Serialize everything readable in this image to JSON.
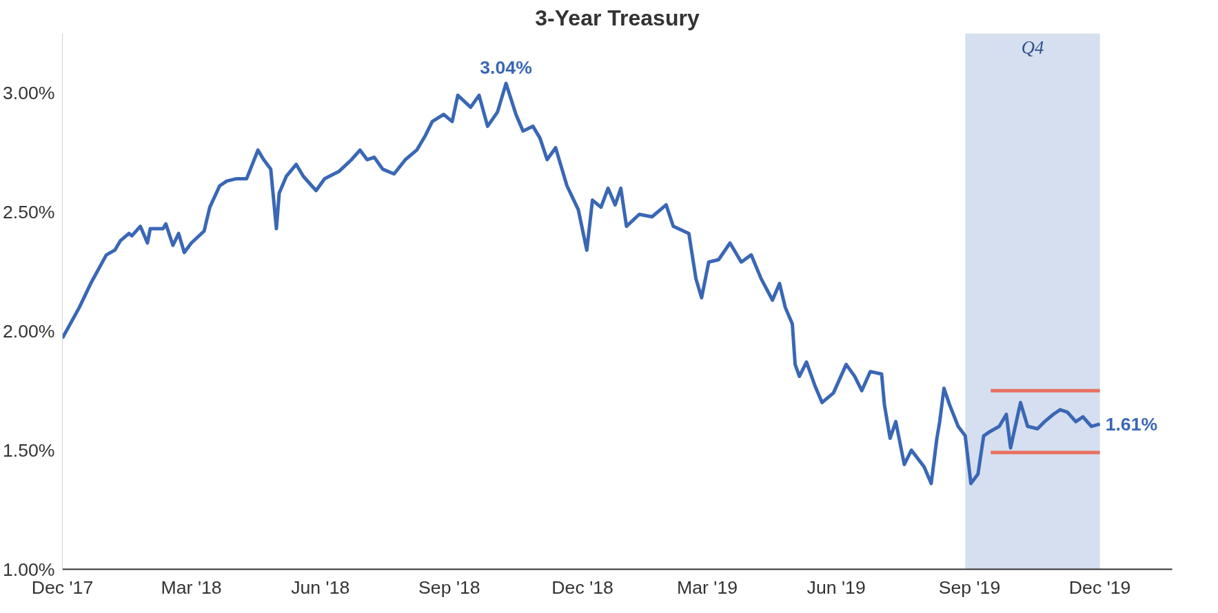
{
  "chart_data": {
    "type": "line",
    "title": "3-Year Treasury",
    "xlim": [
      "2017-12-29",
      "2020-02-20"
    ],
    "xticks": [
      {
        "value": "2017-12-29",
        "label": "Dec '17"
      },
      {
        "value": "2018-03-30",
        "label": "Mar '18"
      },
      {
        "value": "2018-06-29",
        "label": "Jun '18"
      },
      {
        "value": "2018-09-28",
        "label": "Sep '18"
      },
      {
        "value": "2018-12-31",
        "label": "Dec '18"
      },
      {
        "value": "2019-03-29",
        "label": "Mar '19"
      },
      {
        "value": "2019-06-28",
        "label": "Jun '19"
      },
      {
        "value": "2019-09-30",
        "label": "Sep '19"
      },
      {
        "value": "2019-12-31",
        "label": "Dec '19"
      }
    ],
    "ylim": [
      1.0,
      3.25
    ],
    "yticks": [
      {
        "value": 1.0,
        "label": "1.00%"
      },
      {
        "value": 1.5,
        "label": "1.50%"
      },
      {
        "value": 2.0,
        "label": "2.00%"
      },
      {
        "value": 2.5,
        "label": "2.50%"
      },
      {
        "value": 3.0,
        "label": "3.00%"
      }
    ],
    "grid": false,
    "marker": "none",
    "line_style": "solid",
    "bands": [
      {
        "axis": "x",
        "from": "2019-09-27",
        "to": "2019-12-31",
        "label": "Q4",
        "color": "#d5dff0"
      }
    ],
    "annotations": [
      {
        "text": "3.04%",
        "x": "2018-11-07",
        "y": 3.04
      },
      {
        "text": "1.61%",
        "x": "2019-12-31",
        "y": 1.61
      }
    ],
    "series": [
      {
        "color": "#3a67b5",
        "x": [
          "2017-12-29",
          "2018-01-10",
          "2018-01-18",
          "2018-01-29",
          "2018-02-04",
          "2018-02-08",
          "2018-02-14",
          "2018-02-16",
          "2018-02-22",
          "2018-02-27",
          "2018-03-01",
          "2018-03-10",
          "2018-03-12",
          "2018-03-17",
          "2018-03-21",
          "2018-03-25",
          "2018-03-30",
          "2018-04-08",
          "2018-04-12",
          "2018-04-19",
          "2018-04-24",
          "2018-05-01",
          "2018-05-08",
          "2018-05-16",
          "2018-05-20",
          "2018-05-25",
          "2018-05-29",
          "2018-05-31",
          "2018-06-05",
          "2018-06-12",
          "2018-06-17",
          "2018-06-26",
          "2018-07-02",
          "2018-07-12",
          "2018-07-21",
          "2018-07-27",
          "2018-08-01",
          "2018-08-06",
          "2018-08-12",
          "2018-08-20",
          "2018-08-28",
          "2018-09-05",
          "2018-09-11",
          "2018-09-16",
          "2018-09-24",
          "2018-09-30",
          "2018-10-04",
          "2018-10-13",
          "2018-10-19",
          "2018-10-25",
          "2018-11-01",
          "2018-11-07",
          "2018-11-14",
          "2018-11-19",
          "2018-11-26",
          "2018-12-01",
          "2018-12-06",
          "2018-12-12",
          "2018-12-20",
          "2018-12-28",
          "2019-01-03",
          "2019-01-07",
          "2019-01-13",
          "2019-01-18",
          "2019-01-23",
          "2019-01-27",
          "2019-01-31",
          "2019-02-09",
          "2019-02-18",
          "2019-02-28",
          "2019-03-05",
          "2019-03-16",
          "2019-03-21",
          "2019-03-25",
          "2019-03-30",
          "2019-04-06",
          "2019-04-14",
          "2019-04-22",
          "2019-04-29",
          "2019-05-06",
          "2019-05-14",
          "2019-05-19",
          "2019-05-23",
          "2019-05-28",
          "2019-05-30",
          "2019-06-02",
          "2019-06-07",
          "2019-06-13",
          "2019-06-18",
          "2019-06-26",
          "2019-07-05",
          "2019-07-11",
          "2019-07-16",
          "2019-07-22",
          "2019-07-30",
          "2019-08-01",
          "2019-08-05",
          "2019-08-09",
          "2019-08-15",
          "2019-08-20",
          "2019-08-29",
          "2019-09-03",
          "2019-09-07",
          "2019-09-09",
          "2019-09-12",
          "2019-09-16",
          "2019-09-22",
          "2019-09-27",
          "2019-10-01",
          "2019-10-06",
          "2019-10-10",
          "2019-10-15",
          "2019-10-21",
          "2019-10-26",
          "2019-10-29",
          "2019-11-05",
          "2019-11-10",
          "2019-11-17",
          "2019-11-22",
          "2019-11-28",
          "2019-12-03",
          "2019-12-08",
          "2019-12-14",
          "2019-12-19",
          "2019-12-25",
          "2019-12-31"
        ],
        "values": [
          1.97,
          2.1,
          2.2,
          2.32,
          2.34,
          2.38,
          2.41,
          2.4,
          2.44,
          2.37,
          2.43,
          2.43,
          2.45,
          2.36,
          2.41,
          2.33,
          2.37,
          2.42,
          2.52,
          2.61,
          2.63,
          2.64,
          2.64,
          2.76,
          2.72,
          2.68,
          2.43,
          2.58,
          2.65,
          2.7,
          2.65,
          2.59,
          2.64,
          2.67,
          2.72,
          2.76,
          2.72,
          2.73,
          2.68,
          2.66,
          2.72,
          2.76,
          2.82,
          2.88,
          2.91,
          2.88,
          2.99,
          2.94,
          2.99,
          2.86,
          2.92,
          3.04,
          2.91,
          2.84,
          2.86,
          2.81,
          2.72,
          2.77,
          2.61,
          2.51,
          2.34,
          2.55,
          2.52,
          2.6,
          2.53,
          2.6,
          2.44,
          2.49,
          2.48,
          2.53,
          2.44,
          2.41,
          2.22,
          2.14,
          2.29,
          2.3,
          2.37,
          2.29,
          2.32,
          2.22,
          2.13,
          2.2,
          2.1,
          2.03,
          1.86,
          1.81,
          1.87,
          1.77,
          1.7,
          1.74,
          1.86,
          1.81,
          1.75,
          1.83,
          1.82,
          1.69,
          1.55,
          1.62,
          1.44,
          1.5,
          1.43,
          1.36,
          1.55,
          1.62,
          1.76,
          1.69,
          1.6,
          1.56,
          1.36,
          1.4,
          1.56,
          1.58,
          1.6,
          1.65,
          1.51,
          1.7,
          1.6,
          1.59,
          1.62,
          1.65,
          1.67,
          1.66,
          1.62,
          1.64,
          1.6,
          1.61
        ]
      },
      {
        "color": "#e8705f",
        "x": [
          "2019-10-15",
          "2019-12-31"
        ],
        "values": [
          1.75,
          1.75
        ]
      },
      {
        "color": "#e8705f",
        "x": [
          "2019-10-15",
          "2019-12-31"
        ],
        "values": [
          1.49,
          1.49
        ]
      }
    ]
  }
}
